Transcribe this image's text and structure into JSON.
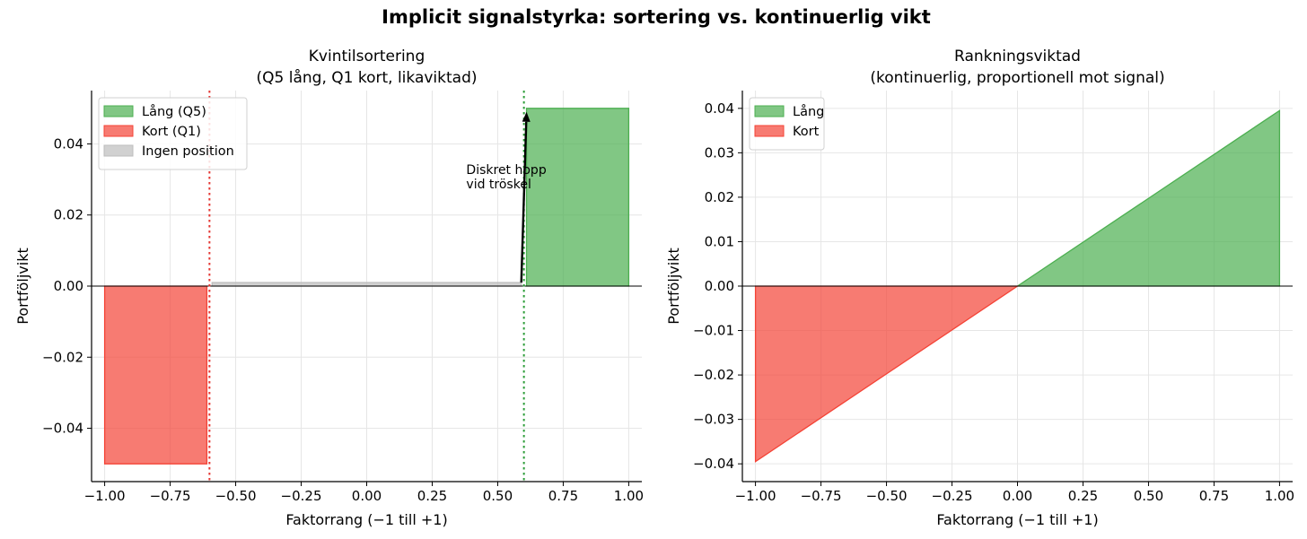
{
  "figure": {
    "suptitle": "Implicit signalstyrka: sortering vs. kontinuerlig vikt"
  },
  "chart_data": [
    {
      "type": "area",
      "title": "Kvintilsortering\n(Q5 lång, Q1 kort, likaviktad)",
      "xlabel": "Faktorrang (−1 till +1)",
      "ylabel": "Portföljvikt",
      "xlim": [
        -1.05,
        1.05
      ],
      "ylim": [
        -0.055,
        0.055
      ],
      "x_ticks": [
        -1.0,
        -0.75,
        -0.5,
        -0.25,
        0.0,
        0.25,
        0.5,
        0.75,
        1.0
      ],
      "x_tick_labels": [
        "−1.00",
        "−0.75",
        "−0.50",
        "−0.25",
        "0.00",
        "0.25",
        "0.50",
        "0.75",
        "1.00"
      ],
      "y_ticks": [
        -0.04,
        -0.02,
        0.0,
        0.02,
        0.04
      ],
      "y_tick_labels": [
        "−0.04",
        "−0.02",
        "0.00",
        "0.02",
        "0.04"
      ],
      "grid": true,
      "legend_position": "upper-left",
      "series": [
        {
          "name": "Lång (Q5)",
          "color": "#4caf50",
          "points": [
            [
              0.61,
              0.05
            ],
            [
              1.0,
              0.05
            ]
          ]
        },
        {
          "name": "Kort (Q1)",
          "color": "#f44336",
          "points": [
            [
              -1.0,
              -0.05
            ],
            [
              -0.61,
              -0.05
            ]
          ]
        },
        {
          "name": "Ingen position",
          "color": "#bdbdbd",
          "points": [
            [
              -0.59,
              0.001
            ],
            [
              0.59,
              0.001
            ]
          ]
        }
      ],
      "vlines": [
        {
          "x": -0.6,
          "color": "#e53935",
          "style": "dotted"
        },
        {
          "x": 0.6,
          "color": "#2e9e3a",
          "style": "dotted"
        }
      ],
      "annotation": {
        "text": [
          "Diskret hopp",
          "vid tröskel"
        ],
        "text_x": 0.38,
        "text_y": 0.03,
        "arrow_from": [
          0.59,
          0.001
        ],
        "arrow_to": [
          0.61,
          0.049
        ]
      }
    },
    {
      "type": "area",
      "title": "Rankningsviktad\n(kontinuerlig, proportionell mot signal)",
      "xlabel": "Faktorrang (−1 till +1)",
      "ylabel": "Portföljvikt",
      "xlim": [
        -1.05,
        1.05
      ],
      "ylim": [
        -0.044,
        0.044
      ],
      "x_ticks": [
        -1.0,
        -0.75,
        -0.5,
        -0.25,
        0.0,
        0.25,
        0.5,
        0.75,
        1.0
      ],
      "x_tick_labels": [
        "−1.00",
        "−0.75",
        "−0.50",
        "−0.25",
        "0.00",
        "0.25",
        "0.50",
        "0.75",
        "1.00"
      ],
      "y_ticks": [
        -0.04,
        -0.03,
        -0.02,
        -0.01,
        0.0,
        0.01,
        0.02,
        0.03,
        0.04
      ],
      "y_tick_labels": [
        "−0.04",
        "−0.03",
        "−0.02",
        "−0.01",
        "0.00",
        "0.01",
        "0.02",
        "0.03",
        "0.04"
      ],
      "grid": true,
      "legend_position": "upper-left",
      "series": [
        {
          "name": "Lång",
          "color": "#4caf50",
          "points": [
            [
              0.0,
              0.0
            ],
            [
              1.0,
              0.0395
            ]
          ]
        },
        {
          "name": "Kort",
          "color": "#f44336",
          "points": [
            [
              -1.0,
              -0.0395
            ],
            [
              0.0,
              0.0
            ]
          ]
        }
      ]
    }
  ]
}
